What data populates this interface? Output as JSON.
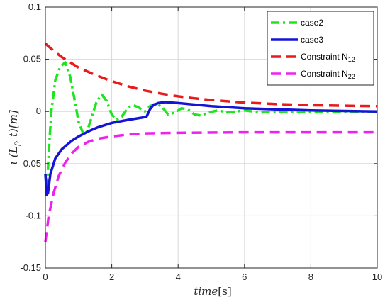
{
  "chart_data": {
    "type": "line",
    "xlabel": {
      "main": "time",
      "unit": "[s]"
    },
    "ylabel": {
      "main": "ι (L",
      "sub": "f",
      "rest": ", t)[m]"
    },
    "xlim": [
      0,
      10
    ],
    "ylim": [
      -0.15,
      0.1
    ],
    "x_ticks": [
      0,
      2,
      4,
      6,
      8,
      10
    ],
    "x_tick_labels": [
      "0",
      "2",
      "4",
      "6",
      "8",
      "10"
    ],
    "y_ticks": [
      -0.15,
      -0.1,
      -0.05,
      0,
      0.05,
      0.1
    ],
    "y_tick_labels": [
      "-0.15",
      "-0.1",
      "-0.05",
      "0",
      "0.05",
      "0.1"
    ],
    "grid": true,
    "legend_position": "top-right",
    "series": [
      {
        "name": "case2",
        "color": "#1ee51e",
        "style": "dashdot",
        "points": [
          [
            0,
            -0.06
          ],
          [
            0.05,
            -0.075
          ],
          [
            0.1,
            -0.04
          ],
          [
            0.18,
            0.0
          ],
          [
            0.3,
            0.03
          ],
          [
            0.45,
            0.043
          ],
          [
            0.6,
            0.047
          ],
          [
            0.75,
            0.033
          ],
          [
            0.9,
            0.008
          ],
          [
            1.0,
            -0.01
          ],
          [
            1.15,
            -0.022
          ],
          [
            1.25,
            -0.02
          ],
          [
            1.4,
            -0.005
          ],
          [
            1.55,
            0.01
          ],
          [
            1.7,
            0.016
          ],
          [
            1.85,
            0.01
          ],
          [
            2.0,
            -0.003
          ],
          [
            2.15,
            -0.008
          ],
          [
            2.3,
            -0.005
          ],
          [
            2.5,
            0.004
          ],
          [
            2.65,
            0.006
          ],
          [
            2.8,
            0.004
          ],
          [
            3.0,
            0.0
          ],
          [
            3.15,
            0.005
          ],
          [
            3.35,
            0.008
          ],
          [
            3.55,
            0.003
          ],
          [
            3.7,
            -0.003
          ],
          [
            3.9,
            -0.001
          ],
          [
            4.1,
            0.003
          ],
          [
            4.3,
            0.002
          ],
          [
            4.5,
            -0.003
          ],
          [
            4.7,
            -0.004
          ],
          [
            4.9,
            -0.001
          ],
          [
            5.2,
            0.001
          ],
          [
            5.5,
            -0.001
          ],
          [
            6.0,
            0.001
          ],
          [
            6.5,
            -0.001
          ],
          [
            7.0,
            0.0
          ],
          [
            8.0,
            0.0
          ],
          [
            10.0,
            0.0
          ]
        ]
      },
      {
        "name": "case3",
        "color": "#1414d6",
        "style": "solid",
        "points": [
          [
            0,
            -0.06
          ],
          [
            0.04,
            -0.08
          ],
          [
            0.08,
            -0.078
          ],
          [
            0.15,
            -0.06
          ],
          [
            0.3,
            -0.045
          ],
          [
            0.5,
            -0.036
          ],
          [
            0.8,
            -0.028
          ],
          [
            1.0,
            -0.024
          ],
          [
            1.3,
            -0.019
          ],
          [
            1.6,
            -0.015
          ],
          [
            2.0,
            -0.011
          ],
          [
            2.5,
            -0.008
          ],
          [
            2.9,
            -0.006
          ],
          [
            3.05,
            -0.005
          ],
          [
            3.15,
            0.002
          ],
          [
            3.25,
            0.006
          ],
          [
            3.4,
            0.008
          ],
          [
            3.6,
            0.009
          ],
          [
            4.0,
            0.008
          ],
          [
            5.0,
            0.005
          ],
          [
            6.0,
            0.003
          ],
          [
            7.0,
            0.002
          ],
          [
            8.0,
            0.001
          ],
          [
            10.0,
            0.0
          ]
        ]
      },
      {
        "name": "Constraint N",
        "name_sub": "12",
        "color": "#e81a1a",
        "style": "dashed",
        "points": [
          [
            0,
            0.065
          ],
          [
            0.25,
            0.058
          ],
          [
            0.5,
            0.052
          ],
          [
            0.75,
            0.047
          ],
          [
            1.0,
            0.042
          ],
          [
            1.5,
            0.035
          ],
          [
            2.0,
            0.029
          ],
          [
            2.5,
            0.024
          ],
          [
            3.0,
            0.02
          ],
          [
            3.5,
            0.017
          ],
          [
            4.0,
            0.0145
          ],
          [
            4.5,
            0.0125
          ],
          [
            5.0,
            0.011
          ],
          [
            6.0,
            0.0085
          ],
          [
            7.0,
            0.007
          ],
          [
            8.0,
            0.006
          ],
          [
            9.0,
            0.0055
          ],
          [
            10.0,
            0.005
          ]
        ]
      },
      {
        "name": "Constraint N",
        "name_sub": "22",
        "color": "#ee22ee",
        "style": "dashed",
        "points": [
          [
            0,
            -0.125
          ],
          [
            0.1,
            -0.1
          ],
          [
            0.25,
            -0.078
          ],
          [
            0.4,
            -0.062
          ],
          [
            0.6,
            -0.049
          ],
          [
            0.8,
            -0.04
          ],
          [
            1.0,
            -0.034
          ],
          [
            1.3,
            -0.029
          ],
          [
            1.6,
            -0.026
          ],
          [
            2.0,
            -0.024
          ],
          [
            2.5,
            -0.022
          ],
          [
            3.0,
            -0.021
          ],
          [
            4.0,
            -0.0205
          ],
          [
            6.0,
            -0.02
          ],
          [
            10.0,
            -0.02
          ]
        ]
      }
    ]
  }
}
